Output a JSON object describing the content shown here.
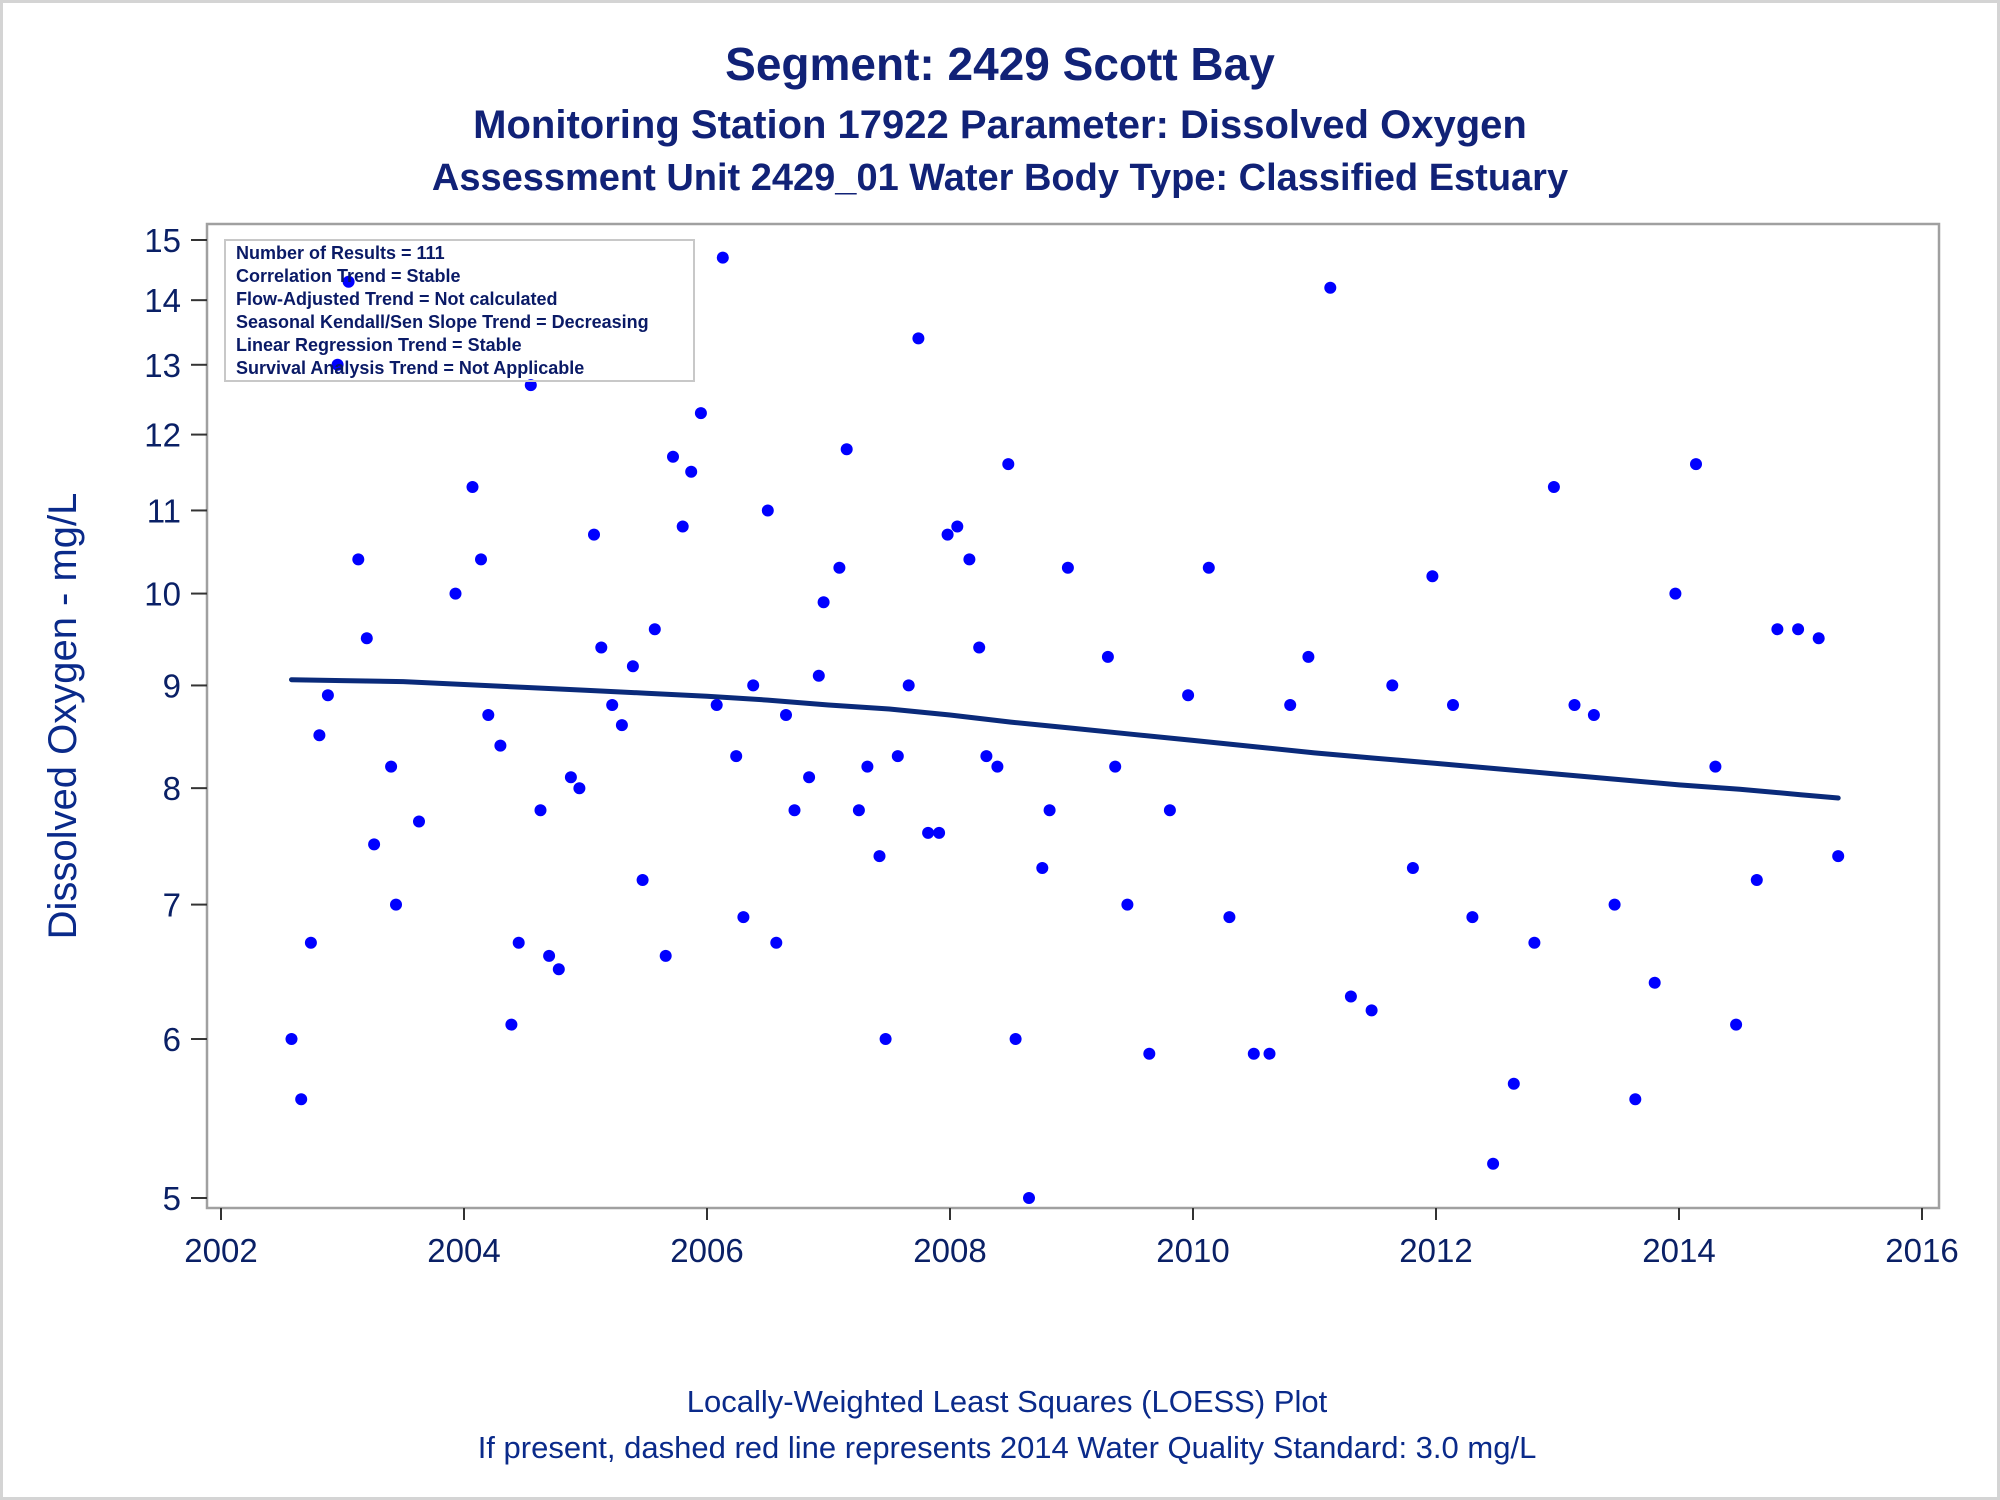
{
  "chart_data": {
    "type": "scatter",
    "title": "Segment: 2429  Scott Bay",
    "subtitle1": "Monitoring Station 17922 Parameter: Dissolved Oxygen",
    "subtitle2": "Assessment Unit 2429_01   Water Body Type: Classified Estuary",
    "xlabel": "",
    "ylabel": "Dissolved Oxygen - mg/L",
    "xlim": [
      2002,
      2016
    ],
    "ylim": [
      5,
      15
    ],
    "yscale": "log",
    "xticks": [
      2002,
      2004,
      2006,
      2008,
      2010,
      2012,
      2014,
      2016
    ],
    "yticks": [
      5,
      6,
      7,
      8,
      9,
      10,
      11,
      12,
      13,
      14,
      15
    ],
    "grid": false,
    "colors": {
      "points": "#0000ff",
      "loess": "#0a2a7a",
      "text": "#112277",
      "frame": "#a0a0a0"
    },
    "inset_position": "top-left",
    "inset_lines": [
      "Number of Results = 111",
      "Correlation Trend = Stable",
      "Flow-Adjusted Trend = Not calculated",
      "Seasonal Kendall/Sen Slope Trend = Decreasing",
      "Linear Regression Trend = Stable",
      "Survival Analysis Trend = Not Applicable"
    ],
    "footnotes": [
      "Locally-Weighted Least Squares (LOESS) Plot",
      "If present, dashed red line represents 2014 Water Quality Standard: 3.0 mg/L"
    ],
    "points": [
      {
        "x": 2002.58,
        "y": 6.0
      },
      {
        "x": 2002.66,
        "y": 5.6
      },
      {
        "x": 2002.74,
        "y": 6.7
      },
      {
        "x": 2002.81,
        "y": 8.5
      },
      {
        "x": 2002.88,
        "y": 8.9
      },
      {
        "x": 2002.96,
        "y": 13.0
      },
      {
        "x": 2003.05,
        "y": 14.3
      },
      {
        "x": 2003.13,
        "y": 10.4
      },
      {
        "x": 2003.2,
        "y": 9.5
      },
      {
        "x": 2003.26,
        "y": 7.5
      },
      {
        "x": 2003.4,
        "y": 8.2
      },
      {
        "x": 2003.44,
        "y": 7.0
      },
      {
        "x": 2003.63,
        "y": 7.7
      },
      {
        "x": 2003.93,
        "y": 10.0
      },
      {
        "x": 2004.07,
        "y": 11.3
      },
      {
        "x": 2004.14,
        "y": 10.4
      },
      {
        "x": 2004.2,
        "y": 8.7
      },
      {
        "x": 2004.3,
        "y": 8.4
      },
      {
        "x": 2004.39,
        "y": 6.1
      },
      {
        "x": 2004.45,
        "y": 6.7
      },
      {
        "x": 2004.55,
        "y": 12.7
      },
      {
        "x": 2004.63,
        "y": 7.8
      },
      {
        "x": 2004.7,
        "y": 6.6
      },
      {
        "x": 2004.78,
        "y": 6.5
      },
      {
        "x": 2004.88,
        "y": 8.1
      },
      {
        "x": 2004.95,
        "y": 8.0
      },
      {
        "x": 2005.07,
        "y": 10.7
      },
      {
        "x": 2005.13,
        "y": 9.4
      },
      {
        "x": 2005.22,
        "y": 8.8
      },
      {
        "x": 2005.3,
        "y": 8.6
      },
      {
        "x": 2005.39,
        "y": 9.2
      },
      {
        "x": 2005.47,
        "y": 7.2
      },
      {
        "x": 2005.57,
        "y": 9.6
      },
      {
        "x": 2005.66,
        "y": 6.6
      },
      {
        "x": 2005.72,
        "y": 11.7
      },
      {
        "x": 2005.8,
        "y": 10.8
      },
      {
        "x": 2005.87,
        "y": 11.5
      },
      {
        "x": 2005.95,
        "y": 12.3
      },
      {
        "x": 2006.08,
        "y": 8.8
      },
      {
        "x": 2006.13,
        "y": 14.7
      },
      {
        "x": 2006.24,
        "y": 8.3
      },
      {
        "x": 2006.3,
        "y": 6.9
      },
      {
        "x": 2006.38,
        "y": 9.0
      },
      {
        "x": 2006.5,
        "y": 11.0
      },
      {
        "x": 2006.57,
        "y": 6.7
      },
      {
        "x": 2006.65,
        "y": 8.7
      },
      {
        "x": 2006.72,
        "y": 7.8
      },
      {
        "x": 2006.84,
        "y": 8.1
      },
      {
        "x": 2006.92,
        "y": 9.1
      },
      {
        "x": 2006.96,
        "y": 9.9
      },
      {
        "x": 2007.09,
        "y": 10.3
      },
      {
        "x": 2007.15,
        "y": 11.8
      },
      {
        "x": 2007.25,
        "y": 7.8
      },
      {
        "x": 2007.32,
        "y": 8.2
      },
      {
        "x": 2007.42,
        "y": 7.4
      },
      {
        "x": 2007.47,
        "y": 6.0
      },
      {
        "x": 2007.57,
        "y": 8.3
      },
      {
        "x": 2007.66,
        "y": 9.0
      },
      {
        "x": 2007.74,
        "y": 13.4
      },
      {
        "x": 2007.82,
        "y": 7.6
      },
      {
        "x": 2007.91,
        "y": 7.6
      },
      {
        "x": 2007.98,
        "y": 10.7
      },
      {
        "x": 2008.06,
        "y": 10.8
      },
      {
        "x": 2008.16,
        "y": 10.4
      },
      {
        "x": 2008.24,
        "y": 9.4
      },
      {
        "x": 2008.3,
        "y": 8.3
      },
      {
        "x": 2008.39,
        "y": 8.2
      },
      {
        "x": 2008.48,
        "y": 11.6
      },
      {
        "x": 2008.54,
        "y": 6.0
      },
      {
        "x": 2008.65,
        "y": 5.0
      },
      {
        "x": 2008.76,
        "y": 7.3
      },
      {
        "x": 2008.82,
        "y": 7.8
      },
      {
        "x": 2008.97,
        "y": 10.3
      },
      {
        "x": 2009.3,
        "y": 9.3
      },
      {
        "x": 2009.36,
        "y": 8.2
      },
      {
        "x": 2009.46,
        "y": 7.0
      },
      {
        "x": 2009.64,
        "y": 5.9
      },
      {
        "x": 2009.81,
        "y": 7.8
      },
      {
        "x": 2009.96,
        "y": 8.9
      },
      {
        "x": 2010.13,
        "y": 10.3
      },
      {
        "x": 2010.3,
        "y": 6.9
      },
      {
        "x": 2010.5,
        "y": 5.9
      },
      {
        "x": 2010.63,
        "y": 5.9
      },
      {
        "x": 2010.8,
        "y": 8.8
      },
      {
        "x": 2010.95,
        "y": 9.3
      },
      {
        "x": 2011.13,
        "y": 14.2
      },
      {
        "x": 2011.3,
        "y": 6.3
      },
      {
        "x": 2011.47,
        "y": 6.2
      },
      {
        "x": 2011.64,
        "y": 9.0
      },
      {
        "x": 2011.81,
        "y": 7.3
      },
      {
        "x": 2011.97,
        "y": 10.2
      },
      {
        "x": 2012.14,
        "y": 8.8
      },
      {
        "x": 2012.3,
        "y": 6.9
      },
      {
        "x": 2012.47,
        "y": 5.2
      },
      {
        "x": 2012.64,
        "y": 5.7
      },
      {
        "x": 2012.81,
        "y": 6.7
      },
      {
        "x": 2012.97,
        "y": 11.3
      },
      {
        "x": 2013.14,
        "y": 8.8
      },
      {
        "x": 2013.3,
        "y": 8.7
      },
      {
        "x": 2013.47,
        "y": 7.0
      },
      {
        "x": 2013.64,
        "y": 5.6
      },
      {
        "x": 2013.8,
        "y": 6.4
      },
      {
        "x": 2013.97,
        "y": 10.0
      },
      {
        "x": 2014.14,
        "y": 11.6
      },
      {
        "x": 2014.3,
        "y": 8.2
      },
      {
        "x": 2014.47,
        "y": 6.1
      },
      {
        "x": 2014.64,
        "y": 7.2
      },
      {
        "x": 2014.81,
        "y": 9.6
      },
      {
        "x": 2014.98,
        "y": 9.6
      },
      {
        "x": 2015.15,
        "y": 9.5
      },
      {
        "x": 2015.31,
        "y": 7.4
      }
    ],
    "loess": [
      {
        "x": 2002.58,
        "y": 9.06
      },
      {
        "x": 2003.0,
        "y": 9.05
      },
      {
        "x": 2003.5,
        "y": 9.04
      },
      {
        "x": 2004.0,
        "y": 9.01
      },
      {
        "x": 2004.5,
        "y": 8.98
      },
      {
        "x": 2005.0,
        "y": 8.95
      },
      {
        "x": 2005.5,
        "y": 8.92
      },
      {
        "x": 2006.0,
        "y": 8.89
      },
      {
        "x": 2006.5,
        "y": 8.85
      },
      {
        "x": 2007.0,
        "y": 8.8
      },
      {
        "x": 2007.5,
        "y": 8.76
      },
      {
        "x": 2008.0,
        "y": 8.7
      },
      {
        "x": 2008.5,
        "y": 8.63
      },
      {
        "x": 2009.0,
        "y": 8.57
      },
      {
        "x": 2009.5,
        "y": 8.51
      },
      {
        "x": 2010.0,
        "y": 8.45
      },
      {
        "x": 2010.5,
        "y": 8.39
      },
      {
        "x": 2011.0,
        "y": 8.33
      },
      {
        "x": 2011.5,
        "y": 8.28
      },
      {
        "x": 2012.0,
        "y": 8.23
      },
      {
        "x": 2012.5,
        "y": 8.18
      },
      {
        "x": 2013.0,
        "y": 8.13
      },
      {
        "x": 2013.5,
        "y": 8.08
      },
      {
        "x": 2014.0,
        "y": 8.03
      },
      {
        "x": 2014.5,
        "y": 7.99
      },
      {
        "x": 2015.0,
        "y": 7.94
      },
      {
        "x": 2015.31,
        "y": 7.91
      }
    ]
  }
}
